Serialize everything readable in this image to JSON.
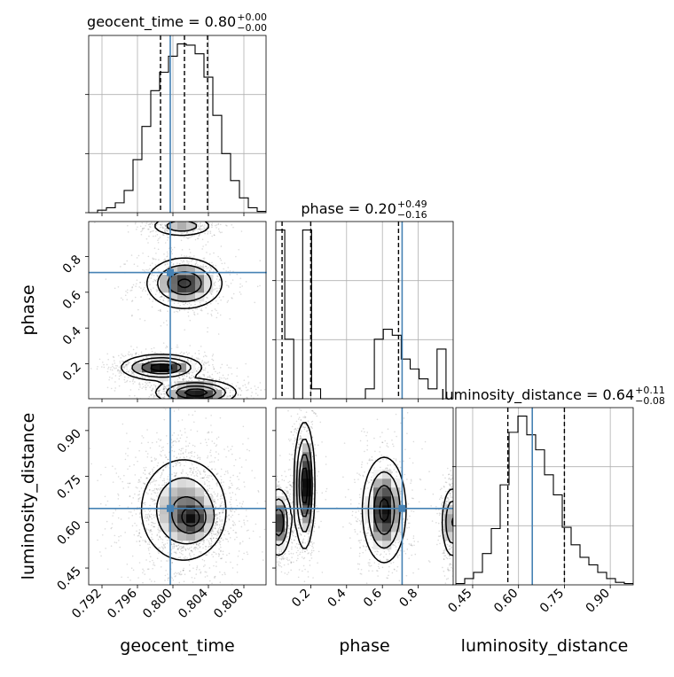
{
  "chart_data": {
    "type": "corner",
    "parameters": [
      "geocent_time",
      "phase",
      "luminosity_distance"
    ],
    "axis_labels": [
      "geocent_time",
      "phase",
      "luminosity_distance"
    ],
    "ranges": {
      "geocent_time": [
        0.7905,
        0.8105
      ],
      "phase": [
        0.005,
        0.995
      ],
      "luminosity_distance": [
        0.395,
        0.975
      ]
    },
    "ticks": {
      "geocent_time": [
        0.792,
        0.796,
        0.8,
        0.804,
        0.808
      ],
      "phase": [
        0.2,
        0.4,
        0.6,
        0.8
      ],
      "luminosity_distance": [
        0.45,
        0.6,
        0.75,
        0.9
      ]
    },
    "tick_labels": {
      "geocent_time": [
        "0.792",
        "0.796",
        "0.800",
        "0.804",
        "0.808"
      ],
      "phase": [
        "0.2",
        "0.4",
        "0.6",
        "0.8"
      ],
      "luminosity_distance": [
        "0.45",
        "0.60",
        "0.75",
        "0.90"
      ]
    },
    "injection": {
      "geocent_time": 0.7997,
      "phase": 0.71,
      "luminosity_distance": 0.645
    },
    "injection_color": "#4682b4",
    "titles": [
      {
        "param": "geocent_time",
        "text": "geocent_time = 0.80",
        "sup": "+0.00",
        "sub": "−0.00"
      },
      {
        "param": "phase",
        "text": "phase = 0.20",
        "sup": "+0.49",
        "sub": "−0.16"
      },
      {
        "param": "luminosity_distance",
        "text": "luminosity_distance = 0.64",
        "sup": "+0.11",
        "sub": "−0.08"
      }
    ],
    "quantiles": {
      "geocent_time": [
        0.7986,
        0.8013,
        0.8039
      ],
      "phase": [
        0.04,
        0.2,
        0.69
      ],
      "luminosity_distance": [
        0.565,
        0.645,
        0.75
      ]
    },
    "histograms": {
      "geocent_time": {
        "edges": [
          0.7905,
          0.7915,
          0.7925,
          0.7935,
          0.7945,
          0.7955,
          0.7965,
          0.7975,
          0.7985,
          0.7995,
          0.8005,
          0.8015,
          0.8025,
          0.8035,
          0.8045,
          0.8055,
          0.8065,
          0.8075,
          0.8085,
          0.8095,
          0.8105
        ],
        "counts": [
          0,
          2,
          4,
          8,
          18,
          43,
          70,
          99,
          114,
          127,
          137,
          136,
          129,
          110,
          79,
          48,
          26,
          12,
          4,
          1
        ]
      },
      "phase": {
        "edges": [
          0.005,
          0.055,
          0.105,
          0.155,
          0.205,
          0.255,
          0.305,
          0.355,
          0.405,
          0.455,
          0.505,
          0.555,
          0.605,
          0.655,
          0.705,
          0.755,
          0.805,
          0.855,
          0.905,
          0.955,
          0.995
        ],
        "counts": [
          85,
          30,
          0,
          85,
          5,
          0,
          0,
          0,
          0,
          0,
          5,
          30,
          35,
          32,
          20,
          15,
          10,
          5,
          25,
          0
        ]
      },
      "luminosity_distance": {
        "edges": [
          0.395,
          0.424,
          0.453,
          0.482,
          0.511,
          0.54,
          0.569,
          0.598,
          0.627,
          0.656,
          0.685,
          0.714,
          0.743,
          0.772,
          0.801,
          0.83,
          0.859,
          0.888,
          0.917,
          0.946,
          0.975
        ],
        "counts": [
          1,
          5,
          10,
          25,
          45,
          80,
          122,
          135,
          120,
          108,
          88,
          72,
          46,
          32,
          22,
          16,
          10,
          5,
          2,
          1
        ]
      }
    },
    "density_2d": [
      {
        "x": "geocent_time",
        "y": "phase",
        "blobs": [
          {
            "cx": 0.801,
            "cy": 0.97,
            "sx": 0.0018,
            "sy": 0.03,
            "w": 0.5
          },
          {
            "cx": 0.8013,
            "cy": 0.65,
            "sx": 0.0021,
            "sy": 0.07,
            "w": 0.9
          },
          {
            "cx": 0.7987,
            "cy": 0.18,
            "sx": 0.0022,
            "sy": 0.035,
            "w": 1.0
          },
          {
            "cx": 0.8026,
            "cy": 0.04,
            "sx": 0.0022,
            "sy": 0.035,
            "w": 1.0
          }
        ]
      },
      {
        "x": "geocent_time",
        "y": "luminosity_distance",
        "blobs": [
          {
            "cx": 0.8012,
            "cy": 0.64,
            "sx": 0.0026,
            "sy": 0.09,
            "w": 1.0
          },
          {
            "cx": 0.8023,
            "cy": 0.61,
            "sx": 0.0012,
            "sy": 0.035,
            "w": 0.7
          }
        ]
      },
      {
        "x": "phase",
        "y": "luminosity_distance",
        "blobs": [
          {
            "cx": 0.02,
            "cy": 0.6,
            "sx": 0.035,
            "sy": 0.055,
            "w": 0.8
          },
          {
            "cx": 0.165,
            "cy": 0.72,
            "sx": 0.028,
            "sy": 0.1,
            "w": 1.0
          },
          {
            "cx": 0.61,
            "cy": 0.64,
            "sx": 0.06,
            "sy": 0.085,
            "w": 0.9
          },
          {
            "cx": 0.99,
            "cy": 0.6,
            "sx": 0.03,
            "sy": 0.06,
            "w": 0.6
          }
        ]
      }
    ],
    "grid": true,
    "legend": "none"
  }
}
